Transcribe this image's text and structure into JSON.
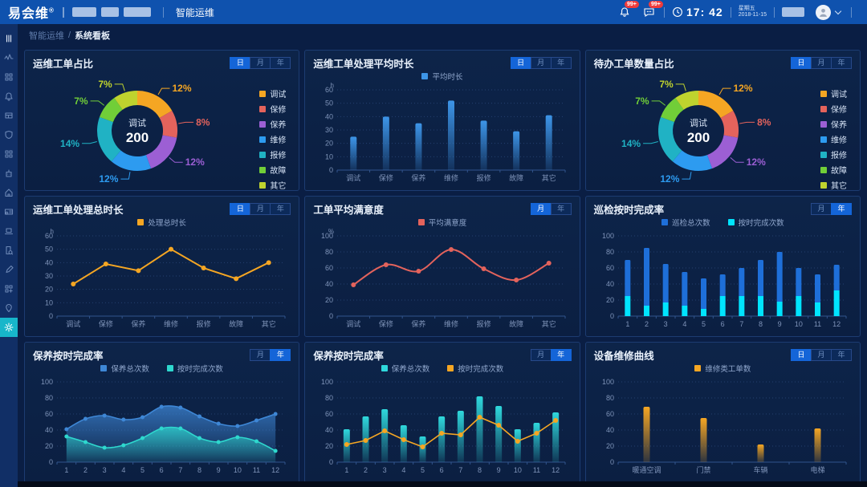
{
  "topbar": {
    "logo": "易会维",
    "logo_sup": "®",
    "nav": "智能运维",
    "bell_badge": "99+",
    "chat_badge": "99+",
    "time": "17: 42",
    "weekday": "星期五",
    "date": "2018-11-15"
  },
  "breadcrumb": {
    "parent": "智能运维",
    "current": "系统看板"
  },
  "sidebar": {
    "items": [
      {
        "icon": "collapse-menu-icon"
      },
      {
        "icon": "pulse-icon"
      },
      {
        "icon": "dashboard-icon"
      },
      {
        "icon": "bell-icon"
      },
      {
        "icon": "table-icon"
      },
      {
        "icon": "shield-icon"
      },
      {
        "icon": "apps-icon"
      },
      {
        "icon": "bot-icon"
      },
      {
        "icon": "home-icon"
      },
      {
        "icon": "id-card-icon"
      },
      {
        "icon": "laptop-icon"
      },
      {
        "icon": "doc-search-icon"
      },
      {
        "icon": "pen-icon"
      },
      {
        "icon": "grid-add-icon"
      },
      {
        "icon": "pin-icon"
      },
      {
        "icon": "gear-icon",
        "active": true
      }
    ]
  },
  "panels": [
    {
      "title": "运维工单占比",
      "buttons": [
        {
          "label": "日",
          "active": true
        },
        {
          "label": "月",
          "active": false
        },
        {
          "label": "年",
          "active": false
        }
      ]
    },
    {
      "title": "运维工单处理平均时长",
      "buttons": [
        {
          "label": "日",
          "active": true
        },
        {
          "label": "月",
          "active": false
        },
        {
          "label": "年",
          "active": false
        }
      ]
    },
    {
      "title": "待办工单数量占比",
      "buttons": [
        {
          "label": "日",
          "active": true
        },
        {
          "label": "月",
          "active": false
        },
        {
          "label": "年",
          "active": false
        }
      ]
    },
    {
      "title": "运维工单处理总时长",
      "buttons": [
        {
          "label": "日",
          "active": true
        },
        {
          "label": "月",
          "active": false
        },
        {
          "label": "年",
          "active": false
        }
      ]
    },
    {
      "title": "工单平均满意度",
      "buttons": [
        {
          "label": "月",
          "active": true
        },
        {
          "label": "年",
          "active": false
        }
      ]
    },
    {
      "title": "巡检按时完成率",
      "buttons": [
        {
          "label": "月",
          "active": false
        },
        {
          "label": "年",
          "active": true
        }
      ]
    },
    {
      "title": "保养按时完成率",
      "buttons": [
        {
          "label": "月",
          "active": false
        },
        {
          "label": "年",
          "active": true
        }
      ]
    },
    {
      "title": "保养按时完成率",
      "buttons": [
        {
          "label": "月",
          "active": false
        },
        {
          "label": "年",
          "active": true
        }
      ]
    },
    {
      "title": "设备维修曲线",
      "buttons": [
        {
          "label": "日",
          "active": true
        },
        {
          "label": "月",
          "active": false
        },
        {
          "label": "年",
          "active": false
        }
      ]
    }
  ],
  "chart_data": [
    {
      "type": "pie",
      "title": "运维工单占比",
      "legend_position": "right",
      "center_label": "调试",
      "center_value": "200",
      "slices": [
        {
          "name": "调试",
          "pct": 12,
          "color": "#f5a623"
        },
        {
          "name": "保修",
          "pct": 8,
          "color": "#e4635c"
        },
        {
          "name": "保养",
          "pct": 12,
          "color": "#9c5fd4"
        },
        {
          "name": "维修",
          "pct": 12,
          "color": "#2d9bf0"
        },
        {
          "name": "报修",
          "pct": 14,
          "color": "#20b2c4"
        },
        {
          "name": "故障",
          "pct": 7,
          "color": "#71ce38"
        },
        {
          "name": "其它",
          "pct": 7,
          "color": "#bfd32e"
        }
      ]
    },
    {
      "type": "bar",
      "title": "运维工单处理平均时长",
      "unit": "h",
      "grid": true,
      "legend_position": "top",
      "categories": [
        "调试",
        "保修",
        "保养",
        "维修",
        "报修",
        "故障",
        "其它"
      ],
      "series": [
        {
          "name": "平均时长",
          "color": "#3d95e8",
          "values": [
            25,
            40,
            35,
            52,
            37,
            29,
            41
          ]
        }
      ],
      "ylim": [
        0,
        60
      ],
      "ytick": 10
    },
    {
      "type": "pie",
      "title": "待办工单数量占比",
      "legend_position": "right",
      "center_label": "调试",
      "center_value": "200",
      "slices": [
        {
          "name": "调试",
          "pct": 12,
          "color": "#f5a623"
        },
        {
          "name": "保修",
          "pct": 8,
          "color": "#e4635c"
        },
        {
          "name": "保养",
          "pct": 12,
          "color": "#9c5fd4"
        },
        {
          "name": "维修",
          "pct": 12,
          "color": "#2d9bf0"
        },
        {
          "name": "报修",
          "pct": 14,
          "color": "#20b2c4"
        },
        {
          "name": "故障",
          "pct": 7,
          "color": "#71ce38"
        },
        {
          "name": "其它",
          "pct": 7,
          "color": "#bfd32e"
        }
      ]
    },
    {
      "type": "line",
      "title": "运维工单处理总时长",
      "unit": "h",
      "smooth": false,
      "grid": true,
      "legend_position": "top",
      "categories": [
        "调试",
        "保修",
        "保养",
        "维修",
        "报修",
        "故障",
        "其它"
      ],
      "series": [
        {
          "name": "处理总时长",
          "color": "#f5a623",
          "values": [
            24,
            39,
            34,
            50,
            36,
            28,
            40
          ]
        }
      ],
      "ylim": [
        0,
        60
      ],
      "ytick": 10
    },
    {
      "type": "line",
      "title": "工单平均满意度",
      "unit": "%",
      "smooth": true,
      "grid": true,
      "legend_position": "top",
      "categories": [
        "调试",
        "保修",
        "保养",
        "维修",
        "报修",
        "故障",
        "其它"
      ],
      "series": [
        {
          "name": "平均满意度",
          "color": "#e4635c",
          "values": [
            39,
            64,
            56,
            83,
            59,
            45,
            66
          ]
        }
      ],
      "ylim": [
        0,
        100
      ],
      "ytick": 20
    },
    {
      "type": "stacked-bar",
      "title": "巡检按时完成率",
      "grid": true,
      "legend_position": "top",
      "categories": [
        "1",
        "2",
        "3",
        "4",
        "5",
        "6",
        "7",
        "8",
        "9",
        "10",
        "11",
        "12"
      ],
      "series": [
        {
          "name": "巡检总次数",
          "color": "#1e6fd9",
          "values": [
            70,
            85,
            65,
            55,
            47,
            52,
            60,
            70,
            80,
            60,
            52,
            64
          ]
        },
        {
          "name": "按时完成次数",
          "color": "#00e4ff",
          "values": [
            25,
            13,
            17,
            13,
            9,
            25,
            25,
            25,
            18,
            25,
            17,
            32
          ]
        }
      ],
      "ylim": [
        0,
        100
      ],
      "ytick": 20
    },
    {
      "type": "area",
      "title": "保养按时完成率",
      "smooth": true,
      "grid": true,
      "legend_position": "top",
      "categories": [
        "1",
        "2",
        "3",
        "4",
        "5",
        "6",
        "7",
        "8",
        "9",
        "10",
        "11",
        "12"
      ],
      "series": [
        {
          "name": "保养总次数",
          "color": "#3e87d6",
          "values": [
            41,
            54,
            58,
            53,
            56,
            69,
            68,
            57,
            48,
            45,
            52,
            60
          ]
        },
        {
          "name": "按时完成次数",
          "color": "#2ed8ce",
          "values": [
            32,
            25,
            18,
            21,
            30,
            42,
            42,
            30,
            25,
            31,
            26,
            14
          ]
        }
      ],
      "ylim": [
        0,
        100
      ],
      "ytick": 20
    },
    {
      "type": "bar-line",
      "title": "保养按时完成率",
      "grid": true,
      "legend_position": "top",
      "categories": [
        "1",
        "2",
        "3",
        "4",
        "5",
        "6",
        "7",
        "8",
        "9",
        "10",
        "11",
        "12"
      ],
      "series": [
        {
          "name": "保养总次数",
          "kind": "bar",
          "color": "#2fd8dc",
          "values": [
            41,
            57,
            66,
            46,
            32,
            57,
            64,
            82,
            70,
            41,
            49,
            62
          ]
        },
        {
          "name": "按时完成次数",
          "kind": "line",
          "color": "#f5a623",
          "values": [
            22,
            27,
            39,
            28,
            19,
            36,
            34,
            56,
            46,
            26,
            36,
            52
          ]
        }
      ],
      "ylim": [
        0,
        100
      ],
      "ytick": 20
    },
    {
      "type": "bar",
      "title": "设备维修曲线",
      "grid": true,
      "legend_position": "top",
      "categories": [
        "暖通空调",
        "门禁",
        "车辆",
        "电梯"
      ],
      "series": [
        {
          "name": "维修类工单数",
          "color": "#f5a623",
          "values": [
            69,
            55,
            22,
            42
          ]
        }
      ],
      "ylim": [
        0,
        100
      ],
      "ytick": 20
    }
  ]
}
